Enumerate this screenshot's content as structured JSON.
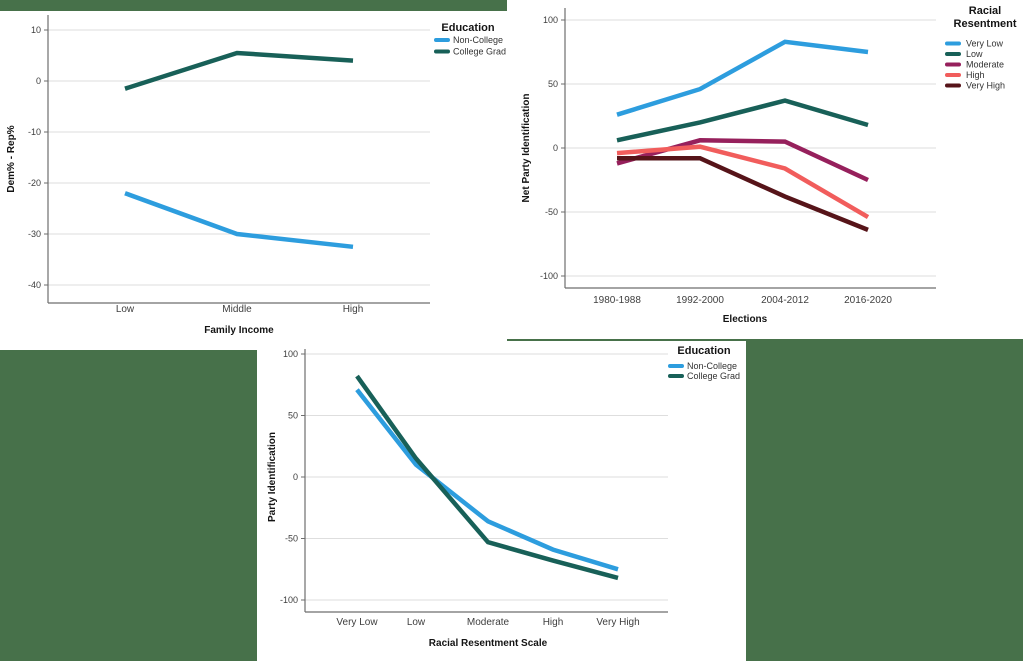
{
  "background_color": "#47714A",
  "panel_color": "#FFFFFF",
  "chart_data": [
    {
      "type": "line",
      "xlabel": "Family Income",
      "ylabel": "Dem% - Rep%",
      "categories": [
        "Low",
        "Middle",
        "High"
      ],
      "y_ticks": [
        10,
        0,
        -10,
        -20,
        -30,
        -40
      ],
      "ylim": [
        -43,
        13
      ],
      "grid": true,
      "legend_title": "Education",
      "legend_position": "top-right-outside",
      "series": [
        {
          "name": "Non-College",
          "color": "#2D9DDE",
          "values": [
            -22,
            -30,
            -32.5
          ]
        },
        {
          "name": "College Grad",
          "color": "#186058",
          "values": [
            -1.5,
            5.5,
            4
          ]
        }
      ]
    },
    {
      "type": "line",
      "xlabel": "Elections",
      "ylabel": "Net Party Identification",
      "categories": [
        "1980-1988",
        "1992-2000",
        "2004-2012",
        "2016-2020"
      ],
      "y_ticks": [
        100,
        50,
        0,
        -50,
        -100
      ],
      "ylim": [
        -110,
        110
      ],
      "grid": true,
      "legend_title": "Racial Resentment",
      "legend_position": "top-right-outside",
      "series": [
        {
          "name": "Very Low",
          "color": "#2D9DDE",
          "values": [
            26,
            46,
            83,
            75
          ]
        },
        {
          "name": "Low",
          "color": "#186058",
          "values": [
            6,
            20,
            37,
            18
          ]
        },
        {
          "name": "Moderate",
          "color": "#96205C",
          "values": [
            -12,
            6,
            5,
            -25
          ]
        },
        {
          "name": "High",
          "color": "#F15D5C",
          "values": [
            -4,
            1,
            -16,
            -54
          ]
        },
        {
          "name": "Very High",
          "color": "#561419",
          "values": [
            -8,
            -8,
            -38,
            -64
          ]
        }
      ]
    },
    {
      "type": "line",
      "xlabel": "Racial Resentment Scale",
      "ylabel": "Party Identification",
      "categories": [
        "Very Low",
        "Low",
        "Moderate",
        "High",
        "Very High"
      ],
      "y_ticks": [
        100,
        50,
        0,
        -50,
        -100
      ],
      "ylim": [
        -110,
        110
      ],
      "grid": true,
      "legend_title": "Education",
      "legend_position": "top-right-outside",
      "series": [
        {
          "name": "Non-College",
          "color": "#2D9DDE",
          "values": [
            71,
            10,
            -36,
            -59,
            -75
          ]
        },
        {
          "name": "College Grad",
          "color": "#186058",
          "values": [
            82,
            15,
            -53,
            -68,
            -82
          ]
        }
      ]
    }
  ]
}
